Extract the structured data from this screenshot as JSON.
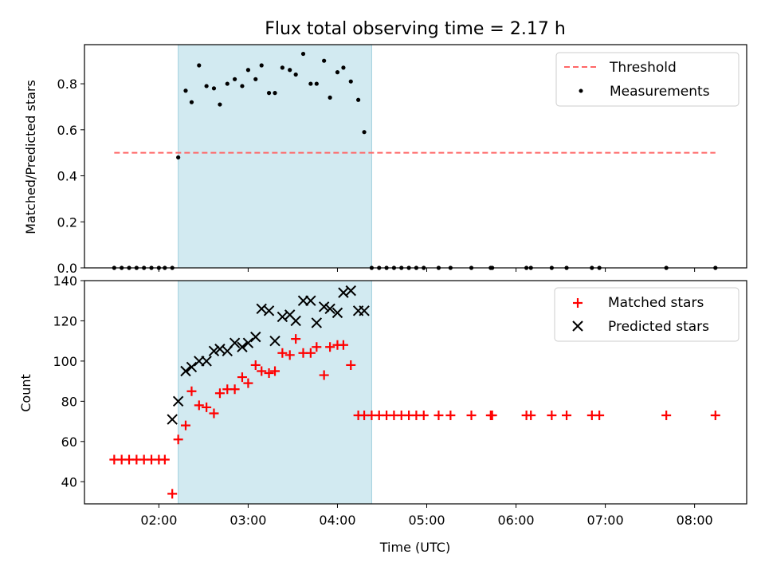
{
  "chart_data": [
    {
      "type": "scatter",
      "title": "Flux total observing time = 2.17 h",
      "xlabel": "",
      "ylabel": "Matched/Predicted stars",
      "xlim": [
        "01:10",
        "08:35"
      ],
      "ylim": [
        0,
        0.97
      ],
      "yticks": [
        0.0,
        0.2,
        0.4,
        0.6,
        0.8
      ],
      "ytick_labels": [
        "0.0",
        "0.2",
        "0.4",
        "0.6",
        "0.8"
      ],
      "xticks": [
        "02:00",
        "03:00",
        "04:00",
        "05:00",
        "06:00",
        "07:00",
        "08:00"
      ],
      "grid": false,
      "legend_position": "top-right",
      "shaded_region": {
        "x_start": "02:13",
        "x_end": "04:23",
        "color": "#add8e6"
      },
      "series": [
        {
          "name": "Threshold",
          "style": "dashed-line",
          "color": "#ff6666",
          "x": [
            "01:30",
            "08:14"
          ],
          "y": [
            0.5,
            0.5
          ]
        },
        {
          "name": "Measurements",
          "style": "dot",
          "color": "#000000",
          "x": [
            "01:30",
            "01:35",
            "01:40",
            "01:45",
            "01:50",
            "01:55",
            "02:00",
            "02:04",
            "02:09",
            "02:13",
            "02:18",
            "02:22",
            "02:27",
            "02:32",
            "02:37",
            "02:41",
            "02:46",
            "02:51",
            "02:56",
            "03:00",
            "03:05",
            "03:09",
            "03:14",
            "03:18",
            "03:23",
            "03:28",
            "03:32",
            "03:37",
            "03:42",
            "03:46",
            "03:51",
            "03:55",
            "04:00",
            "04:04",
            "04:09",
            "04:14",
            "04:18",
            "04:23",
            "04:28",
            "04:33",
            "04:38",
            "04:43",
            "04:48",
            "04:53",
            "04:58",
            "05:08",
            "05:16",
            "05:30",
            "05:43",
            "05:44",
            "06:07",
            "06:10",
            "06:24",
            "06:34",
            "06:51",
            "06:56",
            "07:41",
            "08:14"
          ],
          "y": [
            0,
            0,
            0,
            0,
            0,
            0,
            0,
            0,
            0,
            0.48,
            0.77,
            0.72,
            0.88,
            0.79,
            0.78,
            0.71,
            0.8,
            0.82,
            0.79,
            0.86,
            0.82,
            0.88,
            0.76,
            0.76,
            0.87,
            0.86,
            0.84,
            0.93,
            0.8,
            0.8,
            0.9,
            0.74,
            0.85,
            0.87,
            0.81,
            0.73,
            0.59,
            0,
            0,
            0,
            0,
            0,
            0,
            0,
            0,
            0,
            0,
            0,
            0,
            0,
            0,
            0,
            0,
            0,
            0,
            0,
            0,
            0
          ]
        }
      ]
    },
    {
      "type": "scatter",
      "title": "",
      "xlabel": "Time (UTC)",
      "ylabel": "Count",
      "xlim": [
        "01:10",
        "08:35"
      ],
      "ylim": [
        29,
        140
      ],
      "yticks": [
        40,
        60,
        80,
        100,
        120,
        140
      ],
      "ytick_labels": [
        "40",
        "60",
        "80",
        "100",
        "120",
        "140"
      ],
      "xticks": [
        "02:00",
        "03:00",
        "04:00",
        "05:00",
        "06:00",
        "07:00",
        "08:00"
      ],
      "xtick_labels": [
        "02:00",
        "03:00",
        "04:00",
        "05:00",
        "06:00",
        "07:00",
        "08:00"
      ],
      "grid": false,
      "legend_position": "top-right",
      "shaded_region": {
        "x_start": "02:13",
        "x_end": "04:23",
        "color": "#add8e6"
      },
      "series": [
        {
          "name": "Matched stars",
          "style": "plus",
          "color": "#ff0000",
          "x": [
            "01:30",
            "01:35",
            "01:40",
            "01:45",
            "01:50",
            "01:55",
            "02:00",
            "02:04",
            "02:09",
            "02:13",
            "02:18",
            "02:22",
            "02:27",
            "02:32",
            "02:37",
            "02:41",
            "02:46",
            "02:51",
            "02:56",
            "03:00",
            "03:05",
            "03:09",
            "03:14",
            "03:18",
            "03:23",
            "03:28",
            "03:32",
            "03:37",
            "03:42",
            "03:46",
            "03:51",
            "03:55",
            "04:00",
            "04:04",
            "04:09",
            "04:14",
            "04:18",
            "04:23",
            "04:28",
            "04:33",
            "04:38",
            "04:43",
            "04:48",
            "04:53",
            "04:58",
            "05:08",
            "05:16",
            "05:30",
            "05:43",
            "05:44",
            "06:07",
            "06:10",
            "06:24",
            "06:34",
            "06:51",
            "06:56",
            "07:41",
            "08:14"
          ],
          "y": [
            51,
            51,
            51,
            51,
            51,
            51,
            51,
            51,
            34,
            61,
            68,
            85,
            78,
            77,
            74,
            84,
            86,
            86,
            92,
            89,
            98,
            95,
            94,
            95,
            104,
            103,
            111,
            104,
            104,
            107,
            93,
            107,
            108,
            108,
            98,
            73,
            73,
            73,
            73,
            73,
            73,
            73,
            73,
            73,
            73,
            73,
            73,
            73,
            73,
            73,
            73,
            73,
            73,
            73,
            73,
            73,
            73,
            73
          ]
        },
        {
          "name": "Predicted stars",
          "style": "x",
          "color": "#000000",
          "x": [
            "02:09",
            "02:13",
            "02:18",
            "02:22",
            "02:27",
            "02:32",
            "02:37",
            "02:41",
            "02:46",
            "02:51",
            "02:56",
            "03:00",
            "03:05",
            "03:09",
            "03:14",
            "03:18",
            "03:23",
            "03:28",
            "03:32",
            "03:37",
            "03:42",
            "03:46",
            "03:51",
            "03:55",
            "04:00",
            "04:04",
            "04:09",
            "04:14",
            "04:18"
          ],
          "y": [
            71,
            80,
            95,
            97,
            100,
            100,
            105,
            106,
            105,
            109,
            107,
            109,
            112,
            126,
            125,
            110,
            122,
            123,
            120,
            130,
            130,
            119,
            127,
            126,
            124,
            134,
            135,
            125,
            125
          ]
        }
      ]
    }
  ]
}
